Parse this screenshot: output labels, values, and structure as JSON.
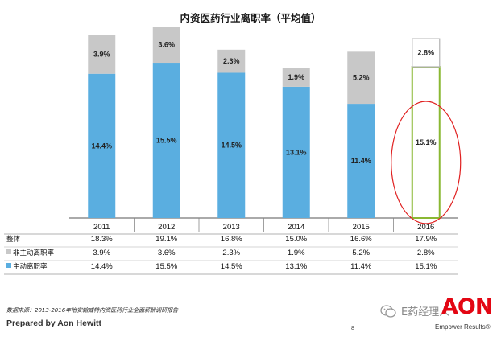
{
  "chart_data": {
    "type": "bar",
    "stacked": true,
    "title": "内资医药行业离职率（平均值）",
    "categories": [
      "2011",
      "2012",
      "2013",
      "2014",
      "2015",
      "2016"
    ],
    "ylim": [
      0,
      20
    ],
    "series": [
      {
        "name": "主动离职率",
        "color": "#5aaee0",
        "values": [
          14.4,
          15.5,
          14.5,
          13.1,
          11.4,
          15.1
        ],
        "labels": [
          "14.4%",
          "15.5%",
          "14.5%",
          "13.1%",
          "11.4%",
          "15.1%"
        ]
      },
      {
        "name": "非主动离职率",
        "color": "#c8c8c8",
        "values": [
          3.9,
          3.6,
          2.3,
          1.9,
          5.2,
          2.8
        ],
        "labels": [
          "3.9%",
          "3.6%",
          "2.3%",
          "1.9%",
          "5.2%",
          "2.8%"
        ]
      }
    ],
    "highlight_category": "2016",
    "highlight_color": "#e02020",
    "highlight_bar_outline": "#8ab833",
    "table": {
      "rows": [
        {
          "label": "整体",
          "marker": "none",
          "values": [
            "18.3%",
            "19.1%",
            "16.8%",
            "15.0%",
            "16.6%",
            "17.9%"
          ]
        },
        {
          "label": "非主动离职率",
          "marker": "#c8c8c8",
          "values": [
            "3.9%",
            "3.6%",
            "2.3%",
            "1.9%",
            "5.2%",
            "2.8%"
          ]
        },
        {
          "label": "主动离职率",
          "marker": "#5aaee0",
          "values": [
            "14.4%",
            "15.5%",
            "14.5%",
            "13.1%",
            "11.4%",
            "15.1%"
          ]
        }
      ]
    }
  },
  "footer": {
    "source": "数据来源：2013-2016年怡安翰威特内资医药行业全面薪酬调研报告",
    "prepared_by": "Prepared by Aon Hewitt",
    "page_number": "8",
    "watermark": "E药经理人",
    "watermark_icon": "wechat-icon",
    "brand": "AON",
    "tagline": "Empower Results®"
  }
}
